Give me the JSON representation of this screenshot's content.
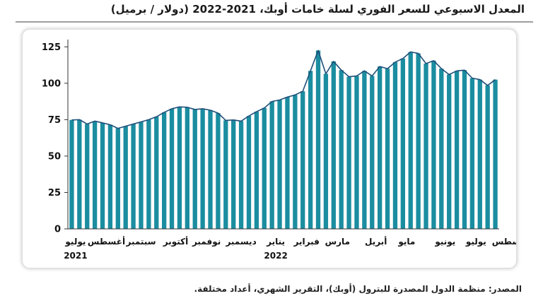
{
  "chart_data": {
    "type": "bar",
    "title": "المعدل الاسبوعي للسعر الفوري لسلة خامات أوبك، 2021-2022 (دولار / برميل)",
    "ylim": [
      0,
      130
    ],
    "yticks": [
      0,
      25,
      50,
      75,
      100,
      125
    ],
    "grid": false,
    "bar_color": "#1b8da0",
    "line_color": "#1f4f78",
    "values": [
      74.8,
      75.0,
      72.0,
      74.0,
      72.8,
      71.5,
      69.0,
      70.5,
      72.0,
      73.5,
      75.0,
      77.0,
      80.0,
      82.5,
      83.8,
      83.5,
      82.0,
      82.5,
      81.5,
      79.5,
      74.5,
      74.8,
      74.0,
      77.5,
      80.5,
      83.0,
      87.5,
      88.5,
      90.5,
      92.0,
      94.5,
      108.5,
      122.5,
      106.5,
      115.0,
      109.0,
      104.5,
      105.0,
      108.5,
      105.0,
      111.5,
      110.0,
      114.5,
      117.0,
      121.5,
      120.5,
      113.5,
      115.5,
      110.0,
      106.0,
      108.5,
      109.0,
      103.5,
      102.5,
      98.5,
      102.5
    ],
    "month_labels": [
      {
        "label": "يوليو",
        "week": 1
      },
      {
        "label": "أغسطس",
        "week": 5
      },
      {
        "label": "سبتمبر",
        "week": 9.5
      },
      {
        "label": "أكتوبر",
        "week": 14
      },
      {
        "label": "نوفمبر",
        "week": 18
      },
      {
        "label": "ديسمبر",
        "week": 22.5
      },
      {
        "label": "يناير",
        "week": 27
      },
      {
        "label": "فبراير",
        "week": 31
      },
      {
        "label": "مارس",
        "week": 35
      },
      {
        "label": "أبريل",
        "week": 40
      },
      {
        "label": "مايو",
        "week": 44
      },
      {
        "label": "يونيو",
        "week": 49
      },
      {
        "label": "يوليو",
        "week": 53
      },
      {
        "label": "أغسطس",
        "week": 57.5
      }
    ],
    "year_labels": [
      {
        "label": "2021",
        "week": 1
      },
      {
        "label": "2022",
        "week": 27
      }
    ]
  },
  "source_text": "المصدر: منظمة الدول المصدرة للبترول (أوبك)، التقرير الشهري، أعداد مختلفة."
}
